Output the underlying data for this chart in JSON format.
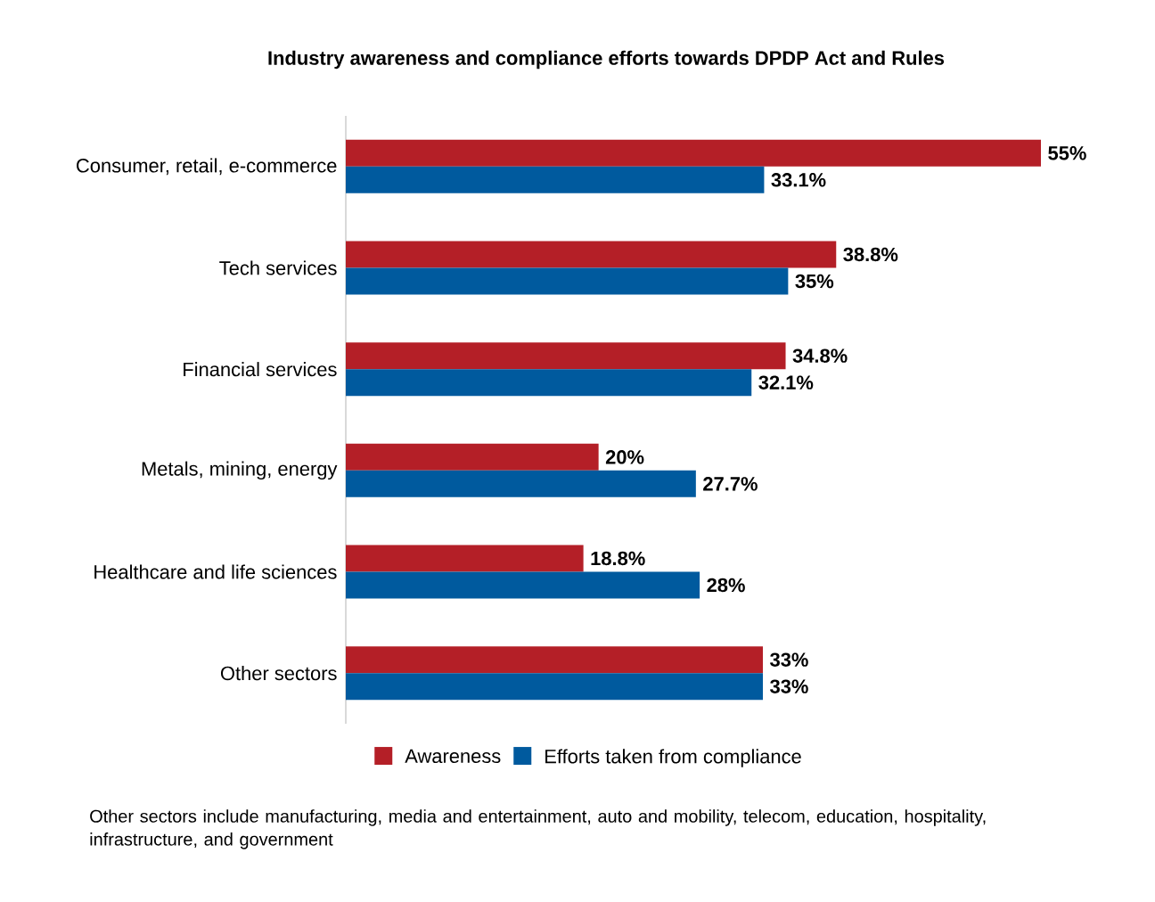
{
  "chart_data": {
    "type": "bar",
    "orientation": "horizontal",
    "title": "Industry awareness and compliance efforts towards DPDP Act and Rules",
    "categories": [
      "Consumer, retail, e-commerce",
      "Tech services",
      "Financial services",
      "Metals, mining, energy",
      "Healthcare and life sciences",
      "Other sectors"
    ],
    "series": [
      {
        "name": "Awareness",
        "color": "#b41f27",
        "values": [
          55,
          38.8,
          34.8,
          20,
          18.8,
          33
        ],
        "value_labels": [
          "55%",
          "38.8%",
          "34.8%",
          "20%",
          "18.8%",
          "33%"
        ]
      },
      {
        "name": "Efforts taken from compliance",
        "color": "#005a9e",
        "values": [
          33.1,
          35,
          32.1,
          27.7,
          28,
          33
        ],
        "value_labels": [
          "33.1%",
          "35%",
          "32.1%",
          "27.7%",
          "28%",
          "33%"
        ]
      }
    ],
    "legend": "bottom",
    "annotations": [
      "Other sectors include manufacturing, media and entertainment, auto and mobility, telecom, education, hospitality, infrastructure, and government"
    ]
  }
}
